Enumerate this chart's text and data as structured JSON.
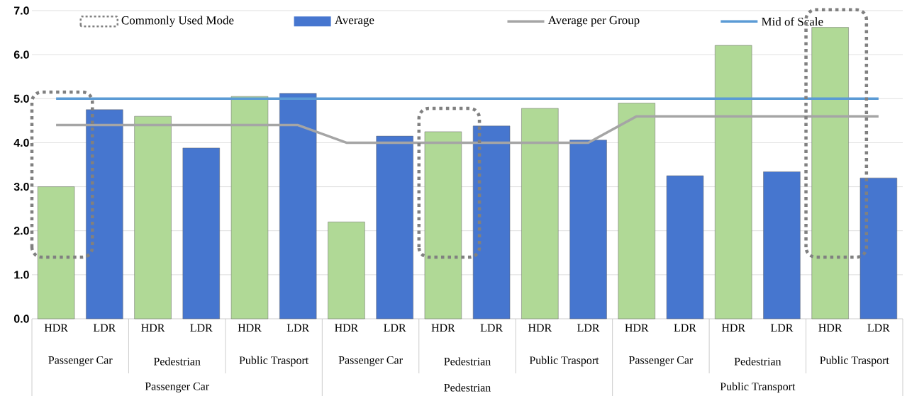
{
  "chart_data": {
    "type": "bar",
    "categories": [
      "HDR",
      "LDR",
      "HDR",
      "LDR",
      "HDR",
      "LDR",
      "HDR",
      "LDR",
      "HDR",
      "LDR",
      "HDR",
      "LDR",
      "HDR",
      "LDR",
      "HDR",
      "LDR",
      "HDR",
      "LDR"
    ],
    "series": [
      {
        "name": "Average",
        "color": "#4676cf",
        "colors": [
          "#b0d996",
          "#4676cf",
          "#b0d996",
          "#4676cf",
          "#b0d996",
          "#4676cf",
          "#b0d996",
          "#4676cf",
          "#b0d996",
          "#4676cf",
          "#b0d996",
          "#4676cf",
          "#b0d996",
          "#4676cf",
          "#b0d996",
          "#4676cf",
          "#b0d996",
          "#4676cf"
        ],
        "values": [
          3.0,
          4.75,
          4.6,
          3.88,
          5.05,
          5.12,
          2.2,
          4.15,
          4.25,
          4.38,
          4.78,
          4.06,
          4.9,
          3.25,
          6.21,
          3.34,
          6.62,
          3.2
        ]
      },
      {
        "name": "Average per Group",
        "type": "line",
        "color": "#a5a5a5",
        "values": [
          4.4,
          4.4,
          4.4,
          4.4,
          4.4,
          4.4,
          4.0,
          4.0,
          4.0,
          4.0,
          4.0,
          4.0,
          4.6,
          4.6,
          4.6,
          4.6,
          4.6,
          4.6
        ]
      },
      {
        "name": "Mid of Scale",
        "type": "line",
        "color": "#5b9bd5",
        "values": [
          5.0,
          5.0,
          5.0,
          5.0,
          5.0,
          5.0,
          5.0,
          5.0,
          5.0,
          5.0,
          5.0,
          5.0,
          5.0,
          5.0,
          5.0,
          5.0,
          5.0,
          5.0
        ]
      }
    ],
    "annotations": [
      "Commonly Used Mode",
      "Passenger Car",
      "Pedestrian",
      "Public Trasport",
      "Passenger Car",
      "Pedestrian",
      "Public Trasport",
      "Passenger Car",
      "Pedestrian",
      "Public Trasport",
      "Passenger Car",
      "Pedestrian",
      "Public Transport"
    ],
    "ylim": [
      0,
      7
    ],
    "yticks": [
      {
        "value": 0,
        "label": "0.0"
      },
      {
        "value": 1,
        "label": "1.0"
      },
      {
        "value": 2,
        "label": "2.0"
      },
      {
        "value": 3,
        "label": "3.0"
      },
      {
        "value": 4,
        "label": "4.0"
      },
      {
        "value": 5,
        "label": "5.0"
      },
      {
        "value": 6,
        "label": "6.0"
      },
      {
        "value": 7,
        "label": "7.0"
      }
    ],
    "grid": "y",
    "legend": "top"
  }
}
